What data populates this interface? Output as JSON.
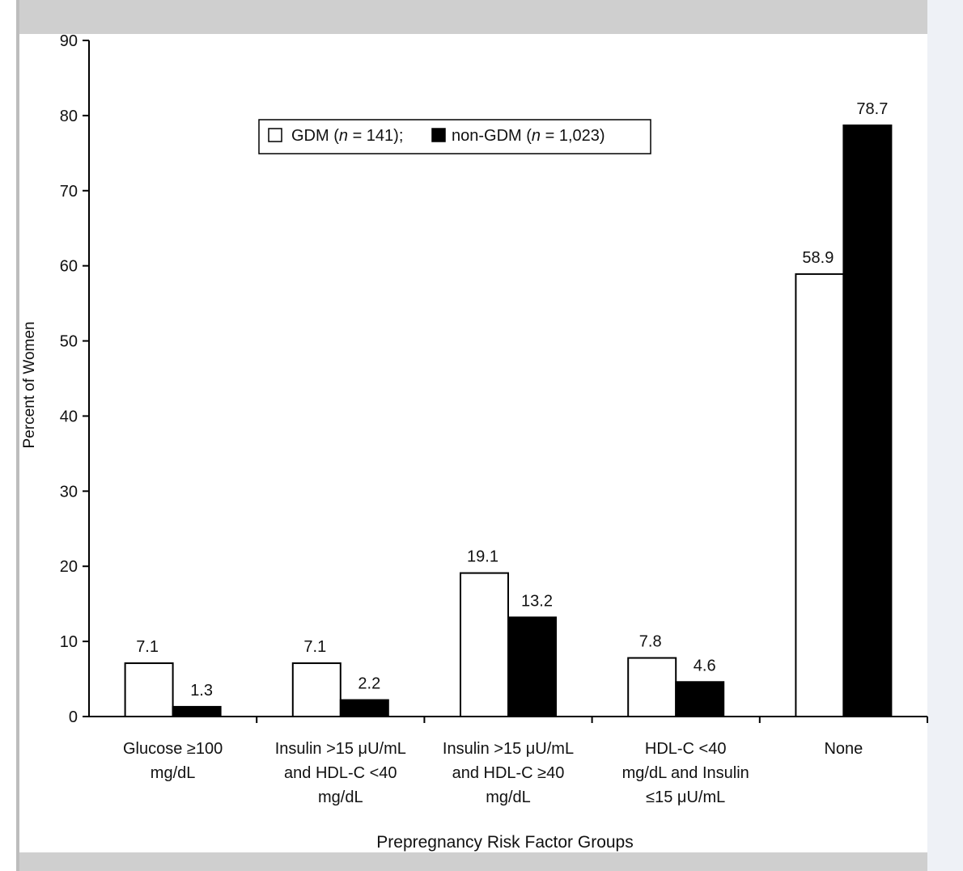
{
  "chart_data": {
    "type": "bar",
    "title": "",
    "xlabel": "Prepregnancy Risk Factor Groups",
    "ylabel": "Percent of Women",
    "ylim": [
      0,
      90
    ],
    "yticks": [
      0,
      10,
      20,
      30,
      40,
      50,
      60,
      70,
      80,
      90
    ],
    "grid": false,
    "legend_position": "top-center",
    "categories": [
      [
        "Glucose ≥100",
        "mg/dL"
      ],
      [
        "Insulin >15 μU/mL",
        "and HDL-C <40",
        "mg/dL"
      ],
      [
        "Insulin >15 μU/mL",
        "and HDL-C ≥40",
        "mg/dL"
      ],
      [
        "HDL-C <40",
        "mg/dL and Insulin",
        "≤15 μU/mL"
      ],
      [
        "None"
      ]
    ],
    "series": [
      {
        "name": "GDM (n = 141);",
        "name_parts": [
          "GDM (",
          "n",
          " = 141);"
        ],
        "fill": "#ffffff",
        "values": [
          7.1,
          7.1,
          19.1,
          7.8,
          58.9
        ],
        "labels": [
          "7.1",
          "7.1",
          "19.1",
          "7.8",
          "58.9"
        ]
      },
      {
        "name": "non-GDM (n = 1,023)",
        "name_parts": [
          "non-GDM (",
          "n",
          " = 1,023)"
        ],
        "fill": "#000000",
        "values": [
          1.3,
          2.2,
          13.2,
          4.6,
          78.7
        ],
        "labels": [
          "1.3",
          "2.2",
          "13.2",
          "4.6",
          "78.7"
        ]
      }
    ]
  }
}
